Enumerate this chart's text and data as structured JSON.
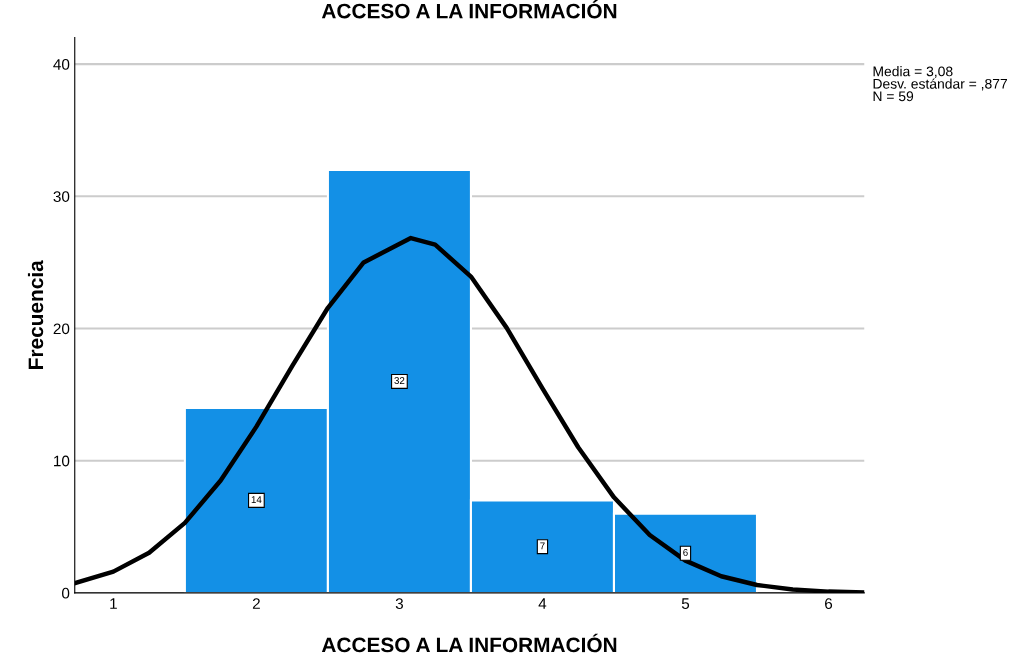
{
  "chart_data": {
    "type": "histogram",
    "title": "ACCESO A LA INFORMACIÓN",
    "xlabel": "ACCESO A LA INFORMACIÓN",
    "ylabel": "Frecuencia",
    "bins": [
      1.5,
      2.5,
      3.5,
      4.5,
      5.5
    ],
    "series": [
      {
        "color": "#1390e6",
        "values": [
          14,
          32,
          7,
          6
        ],
        "value_labels": [
          "14",
          "32",
          "7",
          "6"
        ]
      },
      {
        "type": "line",
        "color": "#000000",
        "x": [
          0.73,
          1.0,
          1.25,
          1.5,
          1.75,
          2.0,
          2.25,
          2.5,
          2.75,
          3.08,
          3.25,
          3.5,
          3.75,
          4.0,
          4.25,
          4.5,
          4.75,
          5.0,
          5.25,
          5.5,
          5.75,
          6.0,
          6.25
        ],
        "values": [
          0.74,
          1.61,
          3.04,
          5.3,
          8.5,
          12.58,
          17.15,
          21.57,
          25.0,
          26.84,
          26.34,
          23.93,
          20.05,
          15.48,
          11.02,
          7.23,
          4.38,
          2.44,
          1.26,
          0.6,
          0.26,
          0.1,
          0.04
        ]
      }
    ],
    "xlim": [
      0.73,
      6.25
    ],
    "ylim": [
      0,
      42
    ],
    "xticks": [
      1,
      2,
      3,
      4,
      5,
      6
    ],
    "yticks": [
      0,
      10,
      20,
      30,
      40
    ],
    "grid": "y",
    "legend": false,
    "annotations": [
      "Media = 3,08\nDesv. estándar = ,877\nN = 59"
    ]
  }
}
